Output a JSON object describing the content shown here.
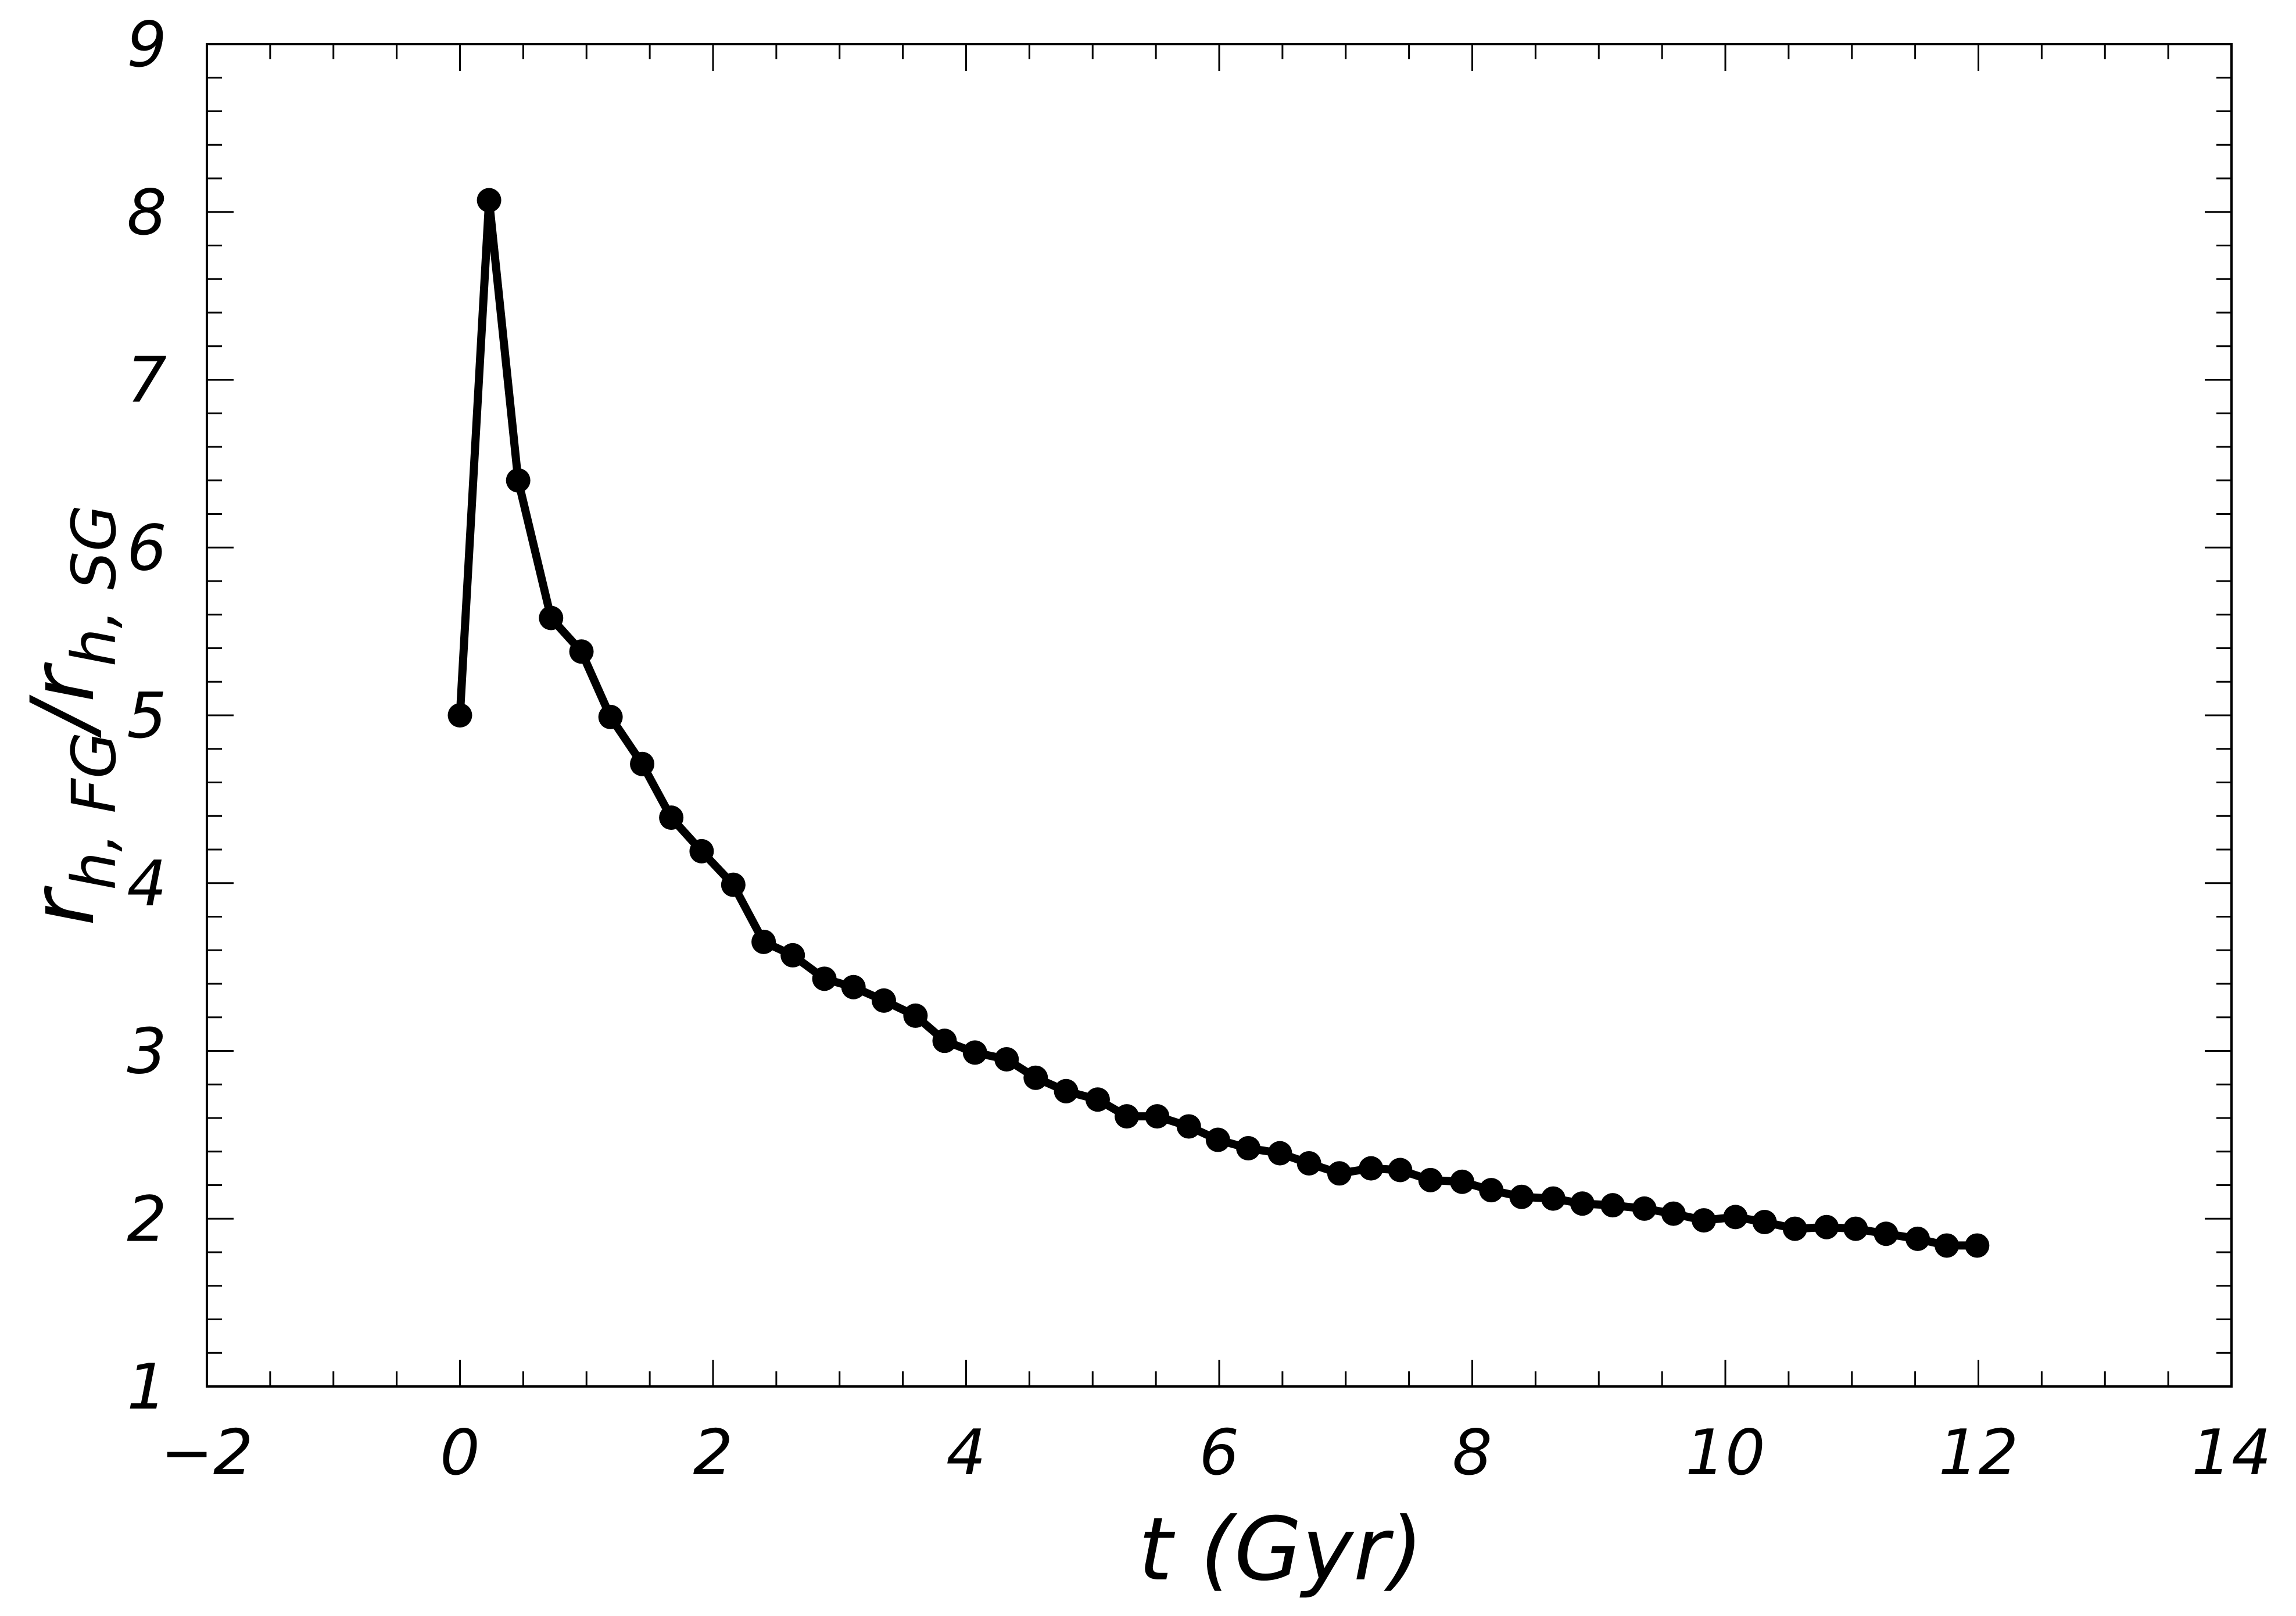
{
  "chart_data": {
    "type": "line",
    "xlabel": "t (Gyr)",
    "ylabel": {
      "parts": [
        {
          "text": "r",
          "role": "main"
        },
        {
          "text": "h, FG",
          "role": "sub"
        },
        {
          "text": "/r",
          "role": "main"
        },
        {
          "text": "h, SG",
          "role": "sub"
        }
      ]
    },
    "xlim": [
      -2,
      14
    ],
    "ylim": [
      1,
      9
    ],
    "xticks": [
      -2,
      0,
      2,
      4,
      6,
      8,
      10,
      12,
      14
    ],
    "xtick_labels": [
      "−2",
      "0",
      "2",
      "4",
      "6",
      "8",
      "10",
      "12",
      "14"
    ],
    "yticks": [
      1,
      2,
      3,
      4,
      5,
      6,
      7,
      8,
      9
    ],
    "ytick_labels": [
      "1",
      "2",
      "3",
      "4",
      "5",
      "6",
      "7",
      "8",
      "9"
    ],
    "x_minor_step": 0.5,
    "y_minor_step": 0.2,
    "grid": false,
    "series": [
      {
        "color": "#000000",
        "marker": "circle",
        "points": [
          [
            0.0,
            5.0
          ],
          [
            0.23,
            8.07
          ],
          [
            0.46,
            6.4
          ],
          [
            0.72,
            5.58
          ],
          [
            0.96,
            5.38
          ],
          [
            1.19,
            4.99
          ],
          [
            1.44,
            4.71
          ],
          [
            1.67,
            4.39
          ],
          [
            1.91,
            4.19
          ],
          [
            2.16,
            3.99
          ],
          [
            2.4,
            3.65
          ],
          [
            2.63,
            3.57
          ],
          [
            2.88,
            3.43
          ],
          [
            3.11,
            3.38
          ],
          [
            3.35,
            3.3
          ],
          [
            3.6,
            3.21
          ],
          [
            3.83,
            3.06
          ],
          [
            4.07,
            2.99
          ],
          [
            4.32,
            2.95
          ],
          [
            4.55,
            2.84
          ],
          [
            4.79,
            2.76
          ],
          [
            5.04,
            2.71
          ],
          [
            5.27,
            2.61
          ],
          [
            5.51,
            2.61
          ],
          [
            5.76,
            2.55
          ],
          [
            5.99,
            2.47
          ],
          [
            6.23,
            2.42
          ],
          [
            6.48,
            2.39
          ],
          [
            6.71,
            2.33
          ],
          [
            6.95,
            2.27
          ],
          [
            7.2,
            2.3
          ],
          [
            7.43,
            2.29
          ],
          [
            7.67,
            2.23
          ],
          [
            7.92,
            2.22
          ],
          [
            8.15,
            2.17
          ],
          [
            8.39,
            2.13
          ],
          [
            8.64,
            2.12
          ],
          [
            8.87,
            2.09
          ],
          [
            9.11,
            2.08
          ],
          [
            9.36,
            2.06
          ],
          [
            9.59,
            2.03
          ],
          [
            9.83,
            1.99
          ],
          [
            10.08,
            2.01
          ],
          [
            10.31,
            1.98
          ],
          [
            10.55,
            1.94
          ],
          [
            10.8,
            1.95
          ],
          [
            11.03,
            1.94
          ],
          [
            11.27,
            1.91
          ],
          [
            11.52,
            1.88
          ],
          [
            11.75,
            1.84
          ],
          [
            11.99,
            1.84
          ]
        ]
      }
    ]
  }
}
